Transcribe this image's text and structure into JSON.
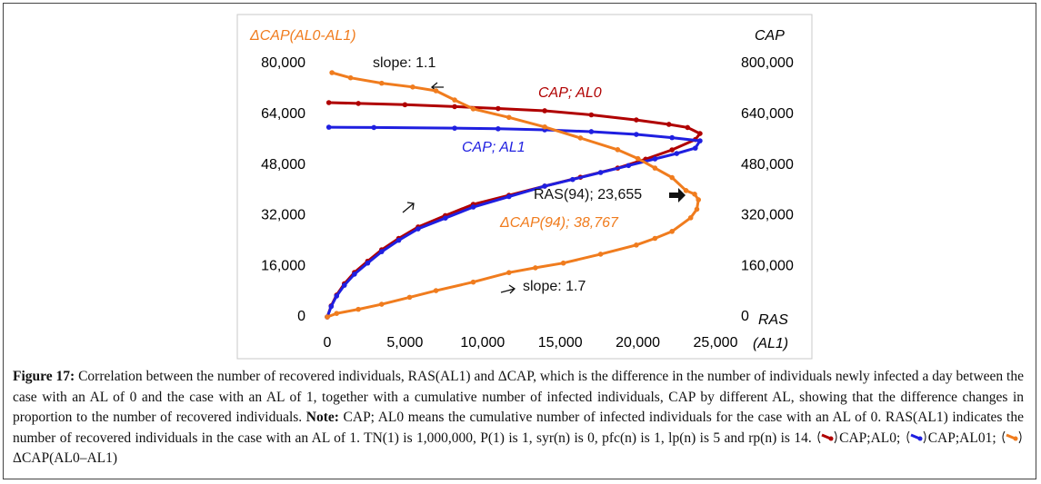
{
  "chart_data": {
    "type": "scatter-line",
    "y_label": "ΔCAP(AL0-AL1)",
    "y2_label": "CAP",
    "x_label_lines": [
      "RAS",
      "(AL1)"
    ],
    "xlim": [
      0,
      25000
    ],
    "ylim": [
      0,
      80000
    ],
    "y2lim": [
      0,
      800000
    ],
    "xticks": [
      0,
      {
        "value": 5000,
        "label": "5,000"
      },
      {
        "value": 10000,
        "label": "10,000"
      },
      {
        "value": 15000,
        "label": "15,000"
      },
      {
        "value": 20000,
        "label": "20,000"
      },
      {
        "value": 25000,
        "label": "25,000"
      }
    ],
    "yticks": [
      0,
      {
        "value": 16000,
        "label": "16,000"
      },
      {
        "value": 32000,
        "label": "32,000"
      },
      {
        "value": 48000,
        "label": "48,000"
      },
      {
        "value": 64000,
        "label": "64,000"
      },
      {
        "value": 80000,
        "label": "80,000"
      }
    ],
    "y2ticks": [
      0,
      {
        "value": 160000,
        "label": "160,000"
      },
      {
        "value": 320000,
        "label": "320,000"
      },
      {
        "value": 480000,
        "label": "480,000"
      },
      {
        "value": 640000,
        "label": "640,000"
      },
      {
        "value": 800000,
        "label": "800,000"
      }
    ],
    "series": [
      {
        "name": "CAP;AL0;",
        "color": "#b00000",
        "axis": "y2",
        "x": [
          100,
          2000,
          5000,
          8200,
          11000,
          14000,
          17000,
          19900,
          22000,
          23200,
          24000,
          23700,
          22200,
          20500,
          18700,
          16300,
          14000,
          11700,
          9400,
          7600,
          5850,
          4600,
          3500,
          2600,
          1750,
          1100,
          600,
          250,
          0
        ],
        "values": [
          676700,
          674000,
          670000,
          664000,
          658000,
          651000,
          638000,
          622000,
          608000,
          598000,
          579000,
          560000,
          527600,
          498000,
          470000,
          441000,
          413000,
          384000,
          355500,
          320000,
          284000,
          248000,
          212000,
          176000,
          140500,
          105000,
          69000,
          35000,
          0
        ]
      },
      {
        "name": "CAP;AL01;",
        "color": "#1f1fe0",
        "axis": "y2",
        "x": [
          100,
          3000,
          8200,
          11000,
          14000,
          17000,
          19900,
          22200,
          24000,
          23700,
          22500,
          21100,
          19400,
          17600,
          15800,
          14000,
          11700,
          9400,
          7600,
          5850,
          4600,
          3500,
          2600,
          1750,
          1100,
          600,
          250,
          0
        ],
        "values": [
          599000,
          598000,
          596000,
          594000,
          590700,
          585000,
          576300,
          566000,
          556000,
          533000,
          516000,
          499000,
          478000,
          456000,
          434000,
          413000,
          380000,
          347000,
          312000,
          278000,
          242000,
          206000,
          170000,
          135000,
          100000,
          66000,
          33000,
          0
        ]
      },
      {
        "name": "ΔCAP(AL0–AL1)",
        "color": "#f07c1e",
        "x": [
          300,
          1500,
          3500,
          5500,
          7000,
          8200,
          9400,
          11700,
          14000,
          16300,
          18700,
          20000,
          21100,
          22200,
          23100,
          23655,
          23900,
          23800,
          23400,
          22200,
          21100,
          19900,
          17600,
          15200,
          13400,
          11700,
          9400,
          7000,
          5300,
          3500,
          2000,
          600,
          0
        ],
        "values": [
          77130,
          75500,
          73800,
          72600,
          71400,
          68500,
          65700,
          63000,
          60000,
          56500,
          52800,
          50000,
          47000,
          44000,
          39900,
          38767,
          37000,
          34000,
          31300,
          27000,
          24800,
          22700,
          19800,
          17000,
          15500,
          14000,
          11000,
          8300,
          6200,
          4000,
          2400,
          1100,
          0
        ]
      }
    ],
    "annotations": [
      {
        "text": "slope: 1.1",
        "color": "#111"
      },
      {
        "text": "CAP; AL0",
        "color": "#b00000"
      },
      {
        "text": "CAP; AL1",
        "color": "#1f1fe0"
      },
      {
        "text": "RAS(94); 23,655",
        "color": "#111"
      },
      {
        "text": "ΔCAP(94); 38,767",
        "color": "#f07c1e"
      },
      {
        "text": "slope: 1.7",
        "color": "#111"
      }
    ]
  },
  "caption": {
    "label": "Figure 17:",
    "text": "Correlation between the number of recovered individuals, RAS(AL1) and ΔCAP, which is the difference in the number of individuals newly infected a day between the case with an AL of 0 and the case with an AL of 1, together with a cumulative number of infected individuals, CAP by different AL, showing that the difference changes in proportion to the number of recovered individuals.",
    "note_label": "Note:",
    "note": "CAP; AL0 means the cumulative number of infected individuals for the case with an AL of 0. RAS(AL1) indicates the number of recovered individuals in the case with an AL of 1. TN(1) is 1,000,000, P(1) is 1, syr(n) is 0, pfc(n) is 1, lp(n) is 5 and rp(n) is 14."
  }
}
